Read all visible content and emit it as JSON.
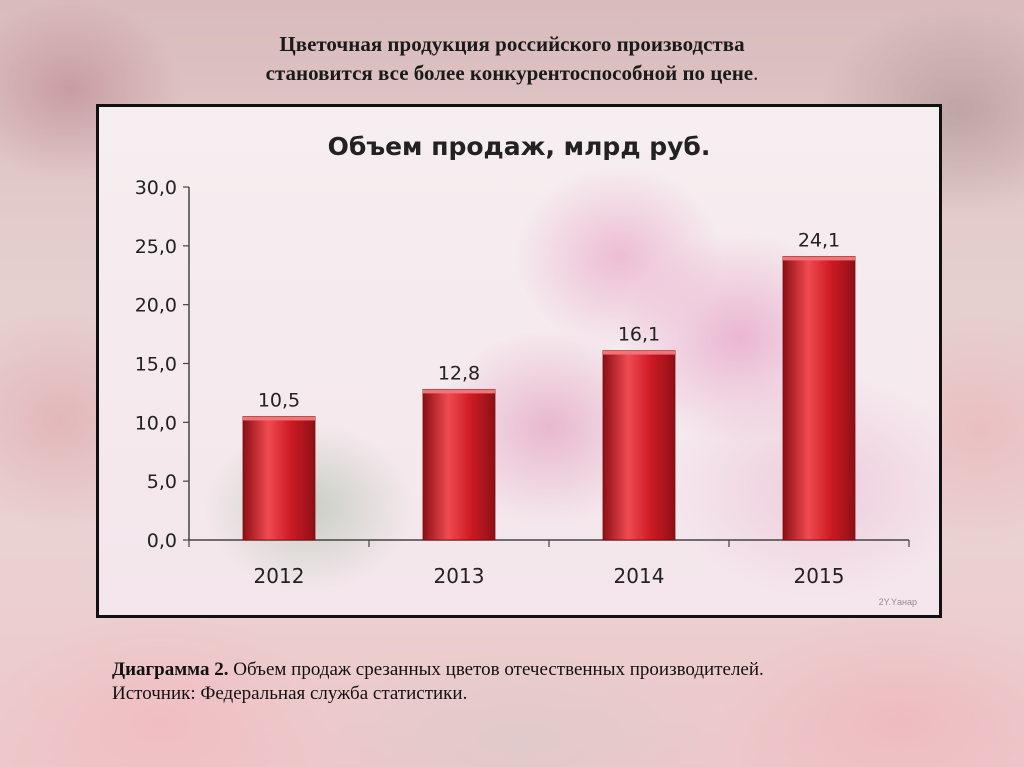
{
  "slide": {
    "title_line1": "Цветочная  продукция российского производства",
    "title_line2": "становится  все более конкурентоспособной по цене",
    "title_line2_end": "."
  },
  "caption": {
    "label": "Диаграмма 2.",
    "text": " Объем продаж срезанных цветов отечественных производителей.",
    "source": "Источник: Федеральная служба статистики."
  },
  "watermark": "2Y.Yанар",
  "colors": {
    "bar": "#d01c25",
    "bar_dark": "#8e0f15",
    "bar_light": "#ee4b50"
  },
  "chart_data": {
    "type": "bar",
    "title": "Объем продаж, млрд руб.",
    "categories": [
      "2012",
      "2013",
      "2014",
      "2015"
    ],
    "values": [
      10.5,
      12.8,
      16.1,
      24.1
    ],
    "value_labels": [
      "10,5",
      "12,8",
      "16,1",
      "24,1"
    ],
    "ylim": [
      0,
      30
    ],
    "yticks": [
      0,
      5,
      10,
      15,
      20,
      25,
      30
    ],
    "ytick_labels": [
      "0,0",
      "5,0",
      "10,0",
      "15,0",
      "20,0",
      "25,0",
      "30,0"
    ],
    "xlabel": "",
    "ylabel": "",
    "grid": false,
    "legend": "none"
  }
}
